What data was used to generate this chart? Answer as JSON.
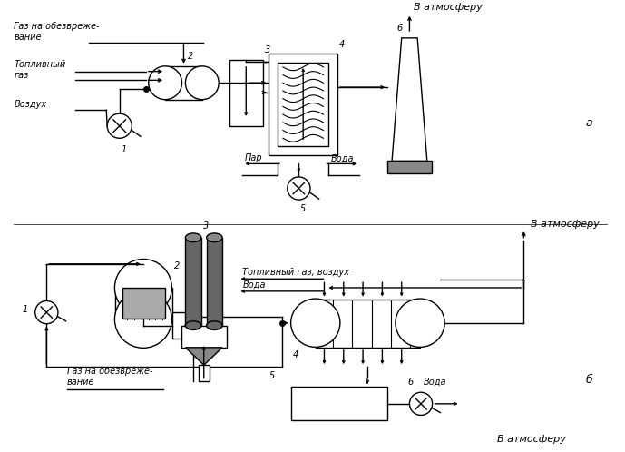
{
  "bg_color": "#ffffff",
  "line_color": "#000000",
  "fig_width": 6.89,
  "fig_height": 4.98,
  "title_a": "а",
  "title_b": "б",
  "label_atmosfera": "В атмосферу",
  "label_gaz_obez": "Газ на обезвреже-\nвание",
  "label_toplivny": "Топливный\nгаз",
  "label_vozdux": "Воздух",
  "label_par": "Пар",
  "label_voda": "Вода",
  "label_1": "1",
  "label_2": "2",
  "label_3": "3",
  "label_4": "4",
  "label_5": "5",
  "label_6": "6",
  "label_toplivny_gaz_vozdux": "Топливный газ, воздух",
  "label_voda_b": "Вода",
  "label_gaz_obez_b": "Газ на обезвреже-\nвание"
}
